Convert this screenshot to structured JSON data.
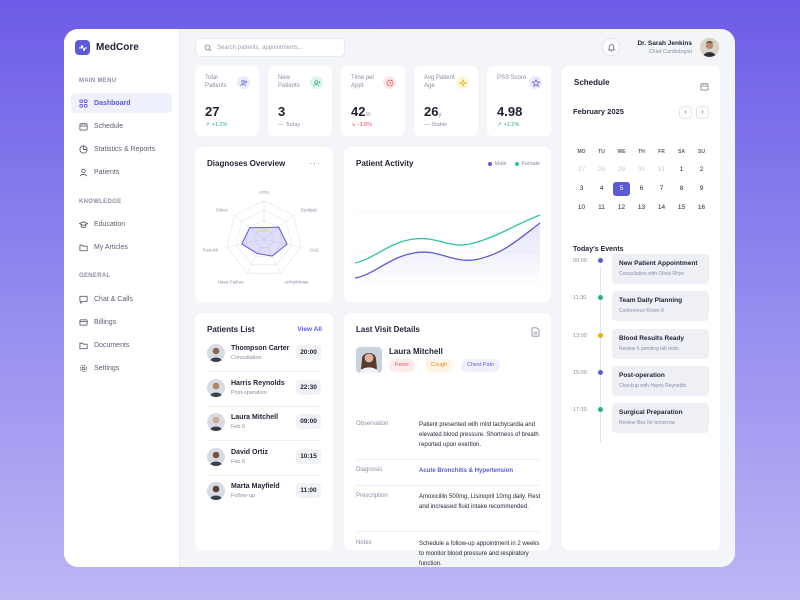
{
  "app": {
    "brand": "MedCore"
  },
  "sidebar": {
    "sections": [
      "MAIN MENU",
      "KNOWLEDGE",
      "GENERAL"
    ],
    "items": [
      {
        "label": "Dashboard",
        "icon": "grid-icon"
      },
      {
        "label": "Schedule",
        "icon": "calendar-icon"
      },
      {
        "label": "Statistics & Reports",
        "icon": "pie-chart-icon"
      },
      {
        "label": "Patients",
        "icon": "user-icon"
      },
      {
        "label": "Education",
        "icon": "graduation-cap-icon"
      },
      {
        "label": "My Articles",
        "icon": "folder-icon"
      },
      {
        "label": "Chat & Calls",
        "icon": "chat-icon"
      },
      {
        "label": "Billings",
        "icon": "credit-card-icon"
      },
      {
        "label": "Documents",
        "icon": "folder-icon"
      },
      {
        "label": "Settings",
        "icon": "gear-icon"
      }
    ]
  },
  "header": {
    "search_placeholder": "Search patients, appointments...",
    "user_name": "Dr. Sarah Jenkins",
    "user_role": "Chief Cardiologist"
  },
  "stats": [
    {
      "label": "Total Patients",
      "value": "27",
      "unit": "",
      "change": "+1.2%",
      "trend": "up",
      "icon": "users-icon",
      "color": "#6b6bdc"
    },
    {
      "label": "New Patients",
      "value": "3",
      "unit": "",
      "change": "Today",
      "trend": "flat",
      "icon": "user-plus-icon",
      "color": "#22b47a"
    },
    {
      "label": "Time per Appt",
      "value": "42",
      "unit": "m",
      "change": "-3.8%",
      "trend": "down",
      "icon": "clock-icon",
      "color": "#e8505b"
    },
    {
      "label": "Avg Patient Age",
      "value": "26",
      "unit": "y",
      "change": "Stable",
      "trend": "flat",
      "icon": "sparkle-icon",
      "color": "#e6b400"
    },
    {
      "label": "PSS Score",
      "value": "4.98",
      "unit": "",
      "change": "+1.2%",
      "trend": "up",
      "icon": "star-icon",
      "color": "#5b5bd6"
    }
  ],
  "diagnoses": {
    "title": "Diagnoses Overview",
    "axes": [
      "HTN",
      "Dyslipid.",
      "CAC",
      "Arrhythmias",
      "Heart Failure",
      "Post-MI",
      "Other"
    ],
    "values": [
      0.3,
      0.5,
      0.62,
      0.5,
      0.42,
      0.6,
      0.48
    ]
  },
  "activity": {
    "title": "Patient Activity",
    "legend": [
      {
        "name": "Male",
        "color": "#5b5bd6"
      },
      {
        "name": "Female",
        "color": "#2ec4a0"
      }
    ]
  },
  "patients_list": {
    "title": "Patients List",
    "view_all": "View All",
    "rows": [
      {
        "name": "Thompson Carter",
        "sub": "Consultation",
        "time": "20:00",
        "skin": "#8a6a52"
      },
      {
        "name": "Harris Reynolds",
        "sub": "Post-operation",
        "time": "22:30",
        "skin": "#b08466"
      },
      {
        "name": "Laura Mitchell",
        "sub": "Feb 6",
        "time": "09:00",
        "skin": "#d4a890"
      },
      {
        "name": "David Ortiz",
        "sub": "Feb 6",
        "time": "10:15",
        "skin": "#7a5640"
      },
      {
        "name": "Marta Mayfield",
        "sub": "Follow-up",
        "time": "11:00",
        "skin": "#5a3e30"
      }
    ]
  },
  "last_visit": {
    "title": "Last Visit Details",
    "patient": "Laura Mitchell",
    "tags": [
      {
        "label": "Fever",
        "bg": "#fdecea",
        "fg": "#e8505b"
      },
      {
        "label": "Cough",
        "bg": "#fff3e6",
        "fg": "#e8871e"
      },
      {
        "label": "Chest Pain",
        "bg": "#eef0fb",
        "fg": "#5b5bd6"
      }
    ],
    "rows": [
      {
        "label": "Observation",
        "text": "Patient presented with mild tachycardia and elevated blood pressure. Shortness of breath reported upon exertion."
      },
      {
        "label": "Diagnosis",
        "text": "Acute Bronchitis & Hypertension"
      },
      {
        "label": "Prescription",
        "text": "Amoxicillin 500mg, Lisinopril 10mg daily. Rest and increased fluid intake recommended."
      },
      {
        "label": "Notes",
        "text": "Schedule a follow-up appointment in 2 weeks to monitor blood pressure and respiratory function."
      }
    ]
  },
  "schedule": {
    "title": "Schedule",
    "month": "February 2025",
    "days_of_week": [
      "MO",
      "TU",
      "WE",
      "TH",
      "FR",
      "SA",
      "SU"
    ],
    "days": [
      {
        "d": "27",
        "muted": true
      },
      {
        "d": "28",
        "muted": true
      },
      {
        "d": "29",
        "muted": true
      },
      {
        "d": "30",
        "muted": true
      },
      {
        "d": "31",
        "muted": true
      },
      {
        "d": "1"
      },
      {
        "d": "2"
      },
      {
        "d": "3"
      },
      {
        "d": "4"
      },
      {
        "d": "5",
        "selected": true
      },
      {
        "d": "6"
      },
      {
        "d": "7"
      },
      {
        "d": "8"
      },
      {
        "d": "9"
      },
      {
        "d": "10"
      },
      {
        "d": "11"
      },
      {
        "d": "12"
      },
      {
        "d": "13"
      },
      {
        "d": "14"
      },
      {
        "d": "15"
      },
      {
        "d": "16"
      }
    ],
    "events_title": "Today's Events",
    "events": [
      {
        "time": "09:00",
        "title": "New Patient Appointment",
        "sub": "Consultation with Olivia Rhye",
        "dot": "#5b5bd6"
      },
      {
        "time": "11:30",
        "title": "Team Daily Planning",
        "sub": "Conference Room 8",
        "dot": "#22b47a"
      },
      {
        "time": "13:00",
        "title": "Blood Results Ready",
        "sub": "Review 5 pending lab tests",
        "dot": "#e6b400"
      },
      {
        "time": "15:00",
        "title": "Post-operation",
        "sub": "Checkup with Harris Reynolds",
        "dot": "#5b5bd6"
      },
      {
        "time": "17:30",
        "title": "Surgical Preparation",
        "sub": "Review files for tomorrow",
        "dot": "#22b47a"
      }
    ]
  }
}
